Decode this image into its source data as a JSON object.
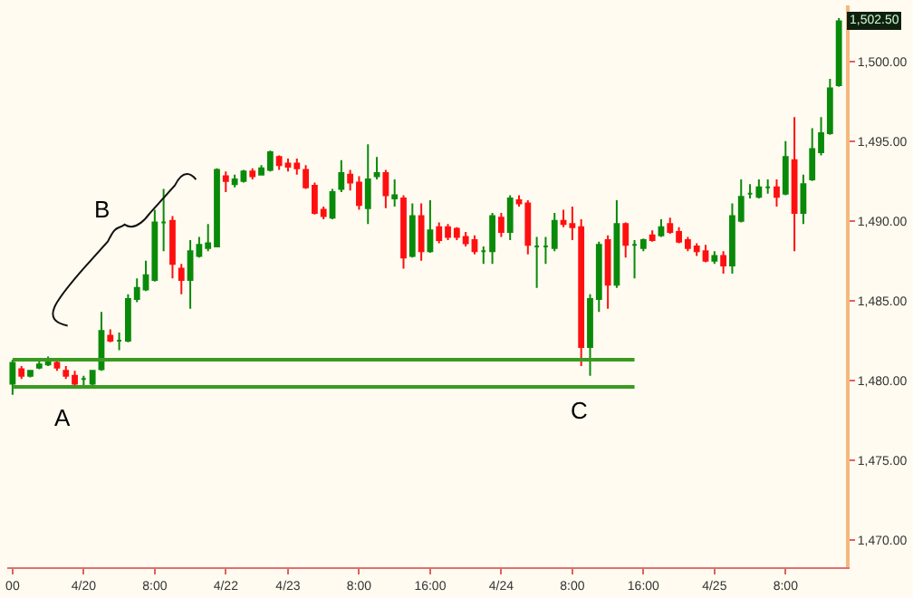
{
  "chart_data": {
    "type": "candlestick",
    "categories": [
      "00",
      null,
      null,
      null,
      null,
      null,
      null,
      null,
      "4/20",
      null,
      null,
      null,
      null,
      null,
      null,
      null,
      "8:00",
      null,
      null,
      null,
      null,
      null,
      null,
      null,
      "4/22",
      null,
      null,
      null,
      null,
      null,
      null,
      "4/23",
      null,
      null,
      null,
      null,
      null,
      null,
      null,
      "8:00",
      null,
      null,
      null,
      null,
      null,
      null,
      null,
      "16:00",
      null,
      null,
      null,
      null,
      null,
      null,
      null,
      "4/24",
      null,
      null,
      null,
      null,
      null,
      null,
      null,
      "8:00",
      null,
      null,
      null,
      null,
      null,
      null,
      null,
      "16:00",
      null,
      null,
      null,
      null,
      null,
      null,
      null,
      "4/25",
      null,
      null,
      null,
      null,
      null,
      null,
      null,
      "8:00",
      null,
      null,
      null,
      null,
      null,
      null
    ],
    "ohlc": [
      [
        1479.8,
        1481.3,
        1479.1,
        1481.1
      ],
      [
        1480.7,
        1480.9,
        1480.1,
        1480.3
      ],
      [
        1480.3,
        1480.6,
        1480.2,
        1480.6
      ],
      [
        1480.8,
        1481.4,
        1480.7,
        1481.0
      ],
      [
        1481.0,
        1481.5,
        1480.9,
        1481.3
      ],
      [
        1481.1,
        1481.4,
        1480.6,
        1480.8
      ],
      [
        1480.6,
        1480.9,
        1480.1,
        1480.3
      ],
      [
        1480.3,
        1480.6,
        1479.7,
        1479.8
      ],
      [
        1480.1,
        1480.3,
        1479.6,
        1480.1
      ],
      [
        1479.8,
        1480.6,
        1479.6,
        1480.6
      ],
      [
        1480.7,
        1484.3,
        1480.6,
        1483.1
      ],
      [
        1482.8,
        1483.2,
        1482.4,
        1482.5
      ],
      [
        1482.5,
        1483.0,
        1481.9,
        1482.5
      ],
      [
        1482.5,
        1485.4,
        1482.4,
        1485.1
      ],
      [
        1485.1,
        1486.4,
        1484.9,
        1485.8
      ],
      [
        1485.7,
        1487.5,
        1485.6,
        1486.6
      ],
      [
        1486.3,
        1490.7,
        1486.2,
        1489.9
      ],
      [
        1489.9,
        1492.0,
        1488.1,
        1489.9
      ],
      [
        1490.0,
        1490.3,
        1486.4,
        1487.3
      ],
      [
        1487.0,
        1487.3,
        1485.4,
        1486.3
      ],
      [
        1486.3,
        1488.8,
        1484.5,
        1488.1
      ],
      [
        1487.8,
        1489.0,
        1487.7,
        1488.5
      ],
      [
        1488.3,
        1489.8,
        1488.1,
        1488.6
      ],
      [
        1488.4,
        1493.3,
        1488.4,
        1493.2
      ],
      [
        1492.8,
        1493.1,
        1491.8,
        1492.5
      ],
      [
        1492.3,
        1492.9,
        1492.1,
        1492.6
      ],
      [
        1492.5,
        1493.2,
        1492.4,
        1493.1
      ],
      [
        1493.1,
        1493.3,
        1492.6,
        1492.8
      ],
      [
        1492.9,
        1493.5,
        1492.9,
        1493.3
      ],
      [
        1493.2,
        1494.4,
        1493.1,
        1494.3
      ],
      [
        1494.0,
        1494.1,
        1493.2,
        1493.5
      ],
      [
        1493.6,
        1493.9,
        1493.1,
        1493.4
      ],
      [
        1493.6,
        1493.9,
        1492.9,
        1493.3
      ],
      [
        1493.2,
        1493.5,
        1492.0,
        1492.1
      ],
      [
        1492.2,
        1492.4,
        1490.4,
        1490.5
      ],
      [
        1490.7,
        1490.9,
        1490.1,
        1490.3
      ],
      [
        1490.2,
        1492.0,
        1490.1,
        1491.8
      ],
      [
        1492.0,
        1493.8,
        1491.8,
        1493.0
      ],
      [
        1492.9,
        1493.2,
        1491.9,
        1492.4
      ],
      [
        1492.4,
        1492.8,
        1490.7,
        1491.0
      ],
      [
        1490.8,
        1494.8,
        1489.8,
        1492.6
      ],
      [
        1492.8,
        1494.0,
        1492.6,
        1493.0
      ],
      [
        1493.0,
        1493.2,
        1490.8,
        1491.6
      ],
      [
        1491.4,
        1492.6,
        1490.9,
        1491.6
      ],
      [
        1491.4,
        1491.6,
        1487.0,
        1487.7
      ],
      [
        1487.8,
        1491.1,
        1487.7,
        1490.3
      ],
      [
        1490.3,
        1491.1,
        1487.5,
        1488.1
      ],
      [
        1488.1,
        1491.3,
        1488.0,
        1489.4
      ],
      [
        1489.6,
        1489.9,
        1488.6,
        1488.8
      ],
      [
        1489.6,
        1489.8,
        1488.8,
        1489.0
      ],
      [
        1489.5,
        1489.6,
        1488.8,
        1489.0
      ],
      [
        1489.0,
        1489.3,
        1488.4,
        1488.6
      ],
      [
        1488.8,
        1489.1,
        1487.9,
        1488.1
      ],
      [
        1488.1,
        1488.4,
        1487.3,
        1488.1
      ],
      [
        1488.1,
        1490.5,
        1487.3,
        1490.3
      ],
      [
        1490.2,
        1490.5,
        1489.0,
        1489.3
      ],
      [
        1489.3,
        1491.6,
        1488.8,
        1491.4
      ],
      [
        1491.3,
        1491.6,
        1490.9,
        1491.1
      ],
      [
        1491.1,
        1491.3,
        1487.9,
        1488.5
      ],
      [
        1488.4,
        1489.0,
        1485.8,
        1488.4
      ],
      [
        1488.4,
        1489.0,
        1487.3,
        1488.4
      ],
      [
        1488.3,
        1490.5,
        1488.1,
        1490.0
      ],
      [
        1490.0,
        1490.7,
        1489.6,
        1489.8
      ],
      [
        1489.8,
        1490.9,
        1488.8,
        1489.6
      ],
      [
        1489.6,
        1490.1,
        1480.9,
        1482.1
      ],
      [
        1482.1,
        1485.4,
        1480.3,
        1485.1
      ],
      [
        1485.1,
        1488.7,
        1484.3,
        1488.5
      ],
      [
        1488.8,
        1489.1,
        1484.5,
        1486.0
      ],
      [
        1486.0,
        1491.3,
        1485.8,
        1489.8
      ],
      [
        1489.8,
        1489.9,
        1487.7,
        1488.5
      ],
      [
        1488.5,
        1488.8,
        1486.4,
        1488.5
      ],
      [
        1488.3,
        1488.9,
        1488.1,
        1488.8
      ],
      [
        1489.1,
        1489.4,
        1488.7,
        1488.8
      ],
      [
        1489.1,
        1490.1,
        1489.0,
        1489.6
      ],
      [
        1489.8,
        1490.2,
        1489.2,
        1489.3
      ],
      [
        1489.3,
        1489.6,
        1488.6,
        1488.7
      ],
      [
        1488.8,
        1489.0,
        1488.1,
        1488.3
      ],
      [
        1488.4,
        1488.6,
        1487.8,
        1488.1
      ],
      [
        1488.1,
        1488.5,
        1487.4,
        1487.5
      ],
      [
        1487.5,
        1488.1,
        1487.3,
        1487.8
      ],
      [
        1487.8,
        1488.1,
        1486.7,
        1487.2
      ],
      [
        1487.2,
        1491.1,
        1486.7,
        1490.3
      ],
      [
        1490.0,
        1492.6,
        1489.9,
        1491.5
      ],
      [
        1491.7,
        1492.3,
        1491.4,
        1491.7
      ],
      [
        1491.5,
        1492.6,
        1491.4,
        1492.1
      ],
      [
        1492.1,
        1492.6,
        1491.7,
        1492.1
      ],
      [
        1492.1,
        1492.6,
        1490.9,
        1491.5
      ],
      [
        1491.7,
        1495.0,
        1491.6,
        1494.0
      ],
      [
        1493.8,
        1496.5,
        1488.1,
        1490.5
      ],
      [
        1490.5,
        1492.9,
        1489.8,
        1492.3
      ],
      [
        1492.6,
        1495.8,
        1492.5,
        1494.5
      ],
      [
        1494.3,
        1496.5,
        1494.1,
        1495.5
      ],
      [
        1495.5,
        1498.9,
        1495.4,
        1498.3
      ],
      [
        1498.5,
        1502.7,
        1498.4,
        1502.5
      ]
    ],
    "colors": [
      "#0a8a0a",
      "#ff1010",
      "#0a8a0a",
      "#0a8a0a",
      "#0a8a0a",
      "#ff1010",
      "#ff1010",
      "#ff1010",
      "#0a8a0a",
      "#0a8a0a",
      "#0a8a0a",
      "#ff1010",
      "#0a8a0a",
      "#0a8a0a",
      "#0a8a0a",
      "#0a8a0a",
      "#0a8a0a",
      "#0a8a0a",
      "#ff1010",
      "#ff1010",
      "#0a8a0a",
      "#0a8a0a",
      "#0a8a0a",
      "#0a8a0a",
      "#ff1010",
      "#0a8a0a",
      "#0a8a0a",
      "#ff1010",
      "#0a8a0a",
      "#0a8a0a",
      "#ff1010",
      "#ff1010",
      "#ff1010",
      "#ff1010",
      "#ff1010",
      "#ff1010",
      "#0a8a0a",
      "#0a8a0a",
      "#ff1010",
      "#ff1010",
      "#0a8a0a",
      "#0a8a0a",
      "#ff1010",
      "#0a8a0a",
      "#ff1010",
      "#0a8a0a",
      "#ff1010",
      "#0a8a0a",
      "#ff1010",
      "#ff1010",
      "#ff1010",
      "#ff1010",
      "#ff1010",
      "#0a8a0a",
      "#0a8a0a",
      "#ff1010",
      "#0a8a0a",
      "#ff1010",
      "#ff1010",
      "#0a8a0a",
      "#0a8a0a",
      "#0a8a0a",
      "#ff1010",
      "#ff1010",
      "#ff1010",
      "#0a8a0a",
      "#0a8a0a",
      "#ff1010",
      "#0a8a0a",
      "#ff1010",
      "#0a8a0a",
      "#0a8a0a",
      "#ff1010",
      "#0a8a0a",
      "#ff1010",
      "#ff1010",
      "#ff1010",
      "#ff1010",
      "#ff1010",
      "#0a8a0a",
      "#ff1010",
      "#0a8a0a",
      "#0a8a0a",
      "#0a8a0a",
      "#0a8a0a",
      "#0a8a0a",
      "#ff1010",
      "#0a8a0a",
      "#ff1010",
      "#0a8a0a",
      "#0a8a0a",
      "#0a8a0a",
      "#0a8a0a",
      "#0a8a0a"
    ],
    "series": [
      {
        "type": "line",
        "values": [
          1481.3,
          1481.3,
          1481.3,
          1481.3,
          1481.3,
          1481.3,
          1481.3,
          1481.3,
          1481.3,
          1481.3,
          1481.3,
          1481.3,
          1481.3,
          1481.3,
          1481.3,
          1481.3,
          1481.3,
          1481.3,
          1481.3,
          1481.3,
          1481.3,
          1481.3,
          1481.3,
          1481.3,
          1481.3,
          1481.3,
          1481.3,
          1481.3,
          1481.3,
          1481.3,
          1481.3,
          1481.3,
          1481.3,
          1481.3,
          1481.3,
          1481.3,
          1481.3,
          1481.3,
          1481.3,
          1481.3,
          1481.3,
          1481.3,
          1481.3,
          1481.3,
          1481.3,
          1481.3,
          1481.3,
          1481.3,
          1481.3,
          1481.3,
          1481.3,
          1481.3,
          1481.3,
          1481.3,
          1481.3,
          1481.3,
          1481.3,
          1481.3,
          1481.3,
          1481.3,
          1481.3,
          1481.3,
          1481.3,
          1481.3,
          1481.3,
          1481.3,
          1481.3,
          1481.3,
          1481.3,
          1481.3,
          1481.3,
          null,
          null,
          null,
          null,
          null,
          null,
          null,
          null,
          null,
          null,
          null,
          null,
          null,
          null,
          null,
          null,
          null,
          null,
          null,
          null,
          null,
          null,
          null
        ],
        "color": "#3a9a20"
      },
      {
        "type": "line",
        "values": [
          1479.6,
          1479.6,
          1479.6,
          1479.6,
          1479.6,
          1479.6,
          1479.6,
          1479.6,
          1479.6,
          1479.6,
          1479.6,
          1479.6,
          1479.6,
          1479.6,
          1479.6,
          1479.6,
          1479.6,
          1479.6,
          1479.6,
          1479.6,
          1479.6,
          1479.6,
          1479.6,
          1479.6,
          1479.6,
          1479.6,
          1479.6,
          1479.6,
          1479.6,
          1479.6,
          1479.6,
          1479.6,
          1479.6,
          1479.6,
          1479.6,
          1479.6,
          1479.6,
          1479.6,
          1479.6,
          1479.6,
          1479.6,
          1479.6,
          1479.6,
          1479.6,
          1479.6,
          1479.6,
          1479.6,
          1479.6,
          1479.6,
          1479.6,
          1479.6,
          1479.6,
          1479.6,
          1479.6,
          1479.6,
          1479.6,
          1479.6,
          1479.6,
          1479.6,
          1479.6,
          1479.6,
          1479.6,
          1479.6,
          1479.6,
          1479.6,
          1479.6,
          1479.6,
          1479.6,
          1479.6,
          1479.6,
          1479.6,
          null,
          null,
          null,
          null,
          null,
          null,
          null,
          null,
          null,
          null,
          null,
          null,
          null,
          null,
          null,
          null,
          null,
          null,
          null,
          null,
          null,
          null,
          null
        ],
        "color": "#3a9a20"
      }
    ],
    "ylim": [
      1468.3,
      1503.5
    ],
    "yticks": [
      {
        "value": 1470,
        "label": "1,470.00"
      },
      {
        "value": 1475,
        "label": "1,475.00"
      },
      {
        "value": 1480,
        "label": "1,480.00"
      },
      {
        "value": 1485,
        "label": "1,485.00"
      },
      {
        "value": 1490,
        "label": "1,490.00"
      },
      {
        "value": 1495,
        "label": "1,495.00"
      },
      {
        "value": 1500,
        "label": "1,500.00"
      }
    ],
    "annotations": [
      "A",
      "B",
      "C",
      {
        "text": "1,502.50",
        "y": 1502.5
      }
    ]
  }
}
